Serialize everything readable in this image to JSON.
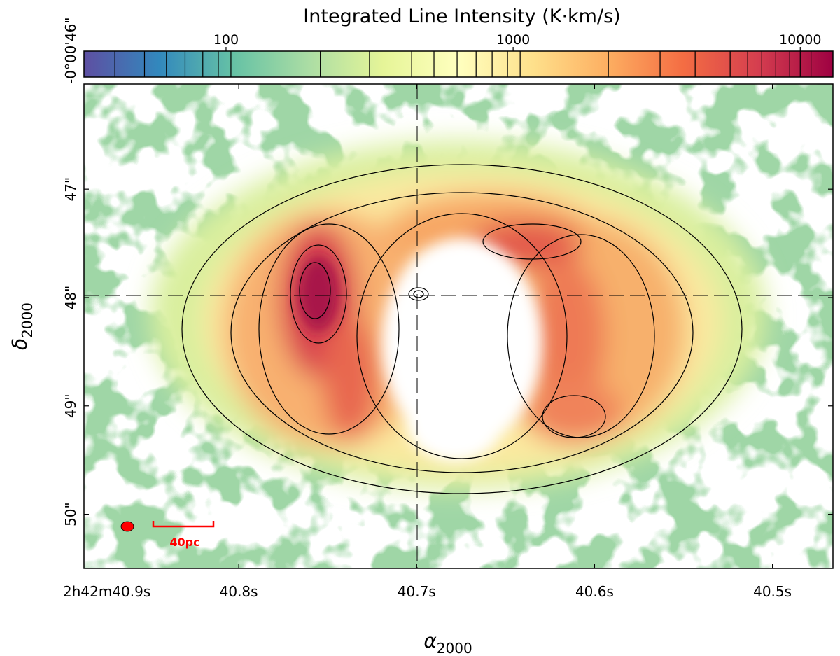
{
  "chart_data": {
    "type": "image",
    "colorbar_label": "Integrated Line Intensity (K·km/s)",
    "clim": [
      32,
      13000
    ],
    "clim_log": true,
    "cticks": [
      100,
      1000,
      10000
    ],
    "contour_levels": [
      41,
      52,
      62,
      72,
      83,
      94,
      104,
      213,
      316,
      443,
      530,
      638,
      743,
      845,
      956,
      1058,
      2146,
      3250,
      4305,
      5700,
      6560,
      7345,
      8220,
      9190,
      10000,
      10900
    ],
    "colors": [
      "#5e4fa2",
      "#3288bd",
      "#66c2a5",
      "#abdda4",
      "#e6f598",
      "#ffffbf",
      "#fee08b",
      "#fdae61",
      "#f46d43",
      "#d53e4f",
      "#9e0142"
    ],
    "x_label": {
      "symbol": "α",
      "subscript": "2000"
    },
    "y_label": {
      "symbol": "δ",
      "subscript": "2000"
    },
    "xlim": [
      40.887,
      40.466
    ],
    "xticks": [
      {
        "value": 40.9,
        "label": "2h42m40.9s"
      },
      {
        "value": 40.8,
        "label": "40.8s"
      },
      {
        "value": 40.7,
        "label": "40.7s"
      },
      {
        "value": 40.6,
        "label": "40.6s"
      },
      {
        "value": 40.5,
        "label": "40.5s"
      }
    ],
    "ylim": [
      46.03,
      50.5
    ],
    "yticks": [
      {
        "value": 46,
        "label": "-0°00'46\""
      },
      {
        "value": 47,
        "label": "47\""
      },
      {
        "value": 48,
        "label": "48\""
      },
      {
        "value": 49,
        "label": "49\""
      },
      {
        "value": 50,
        "label": "50\""
      }
    ],
    "scale_bar_label": "40pc"
  }
}
